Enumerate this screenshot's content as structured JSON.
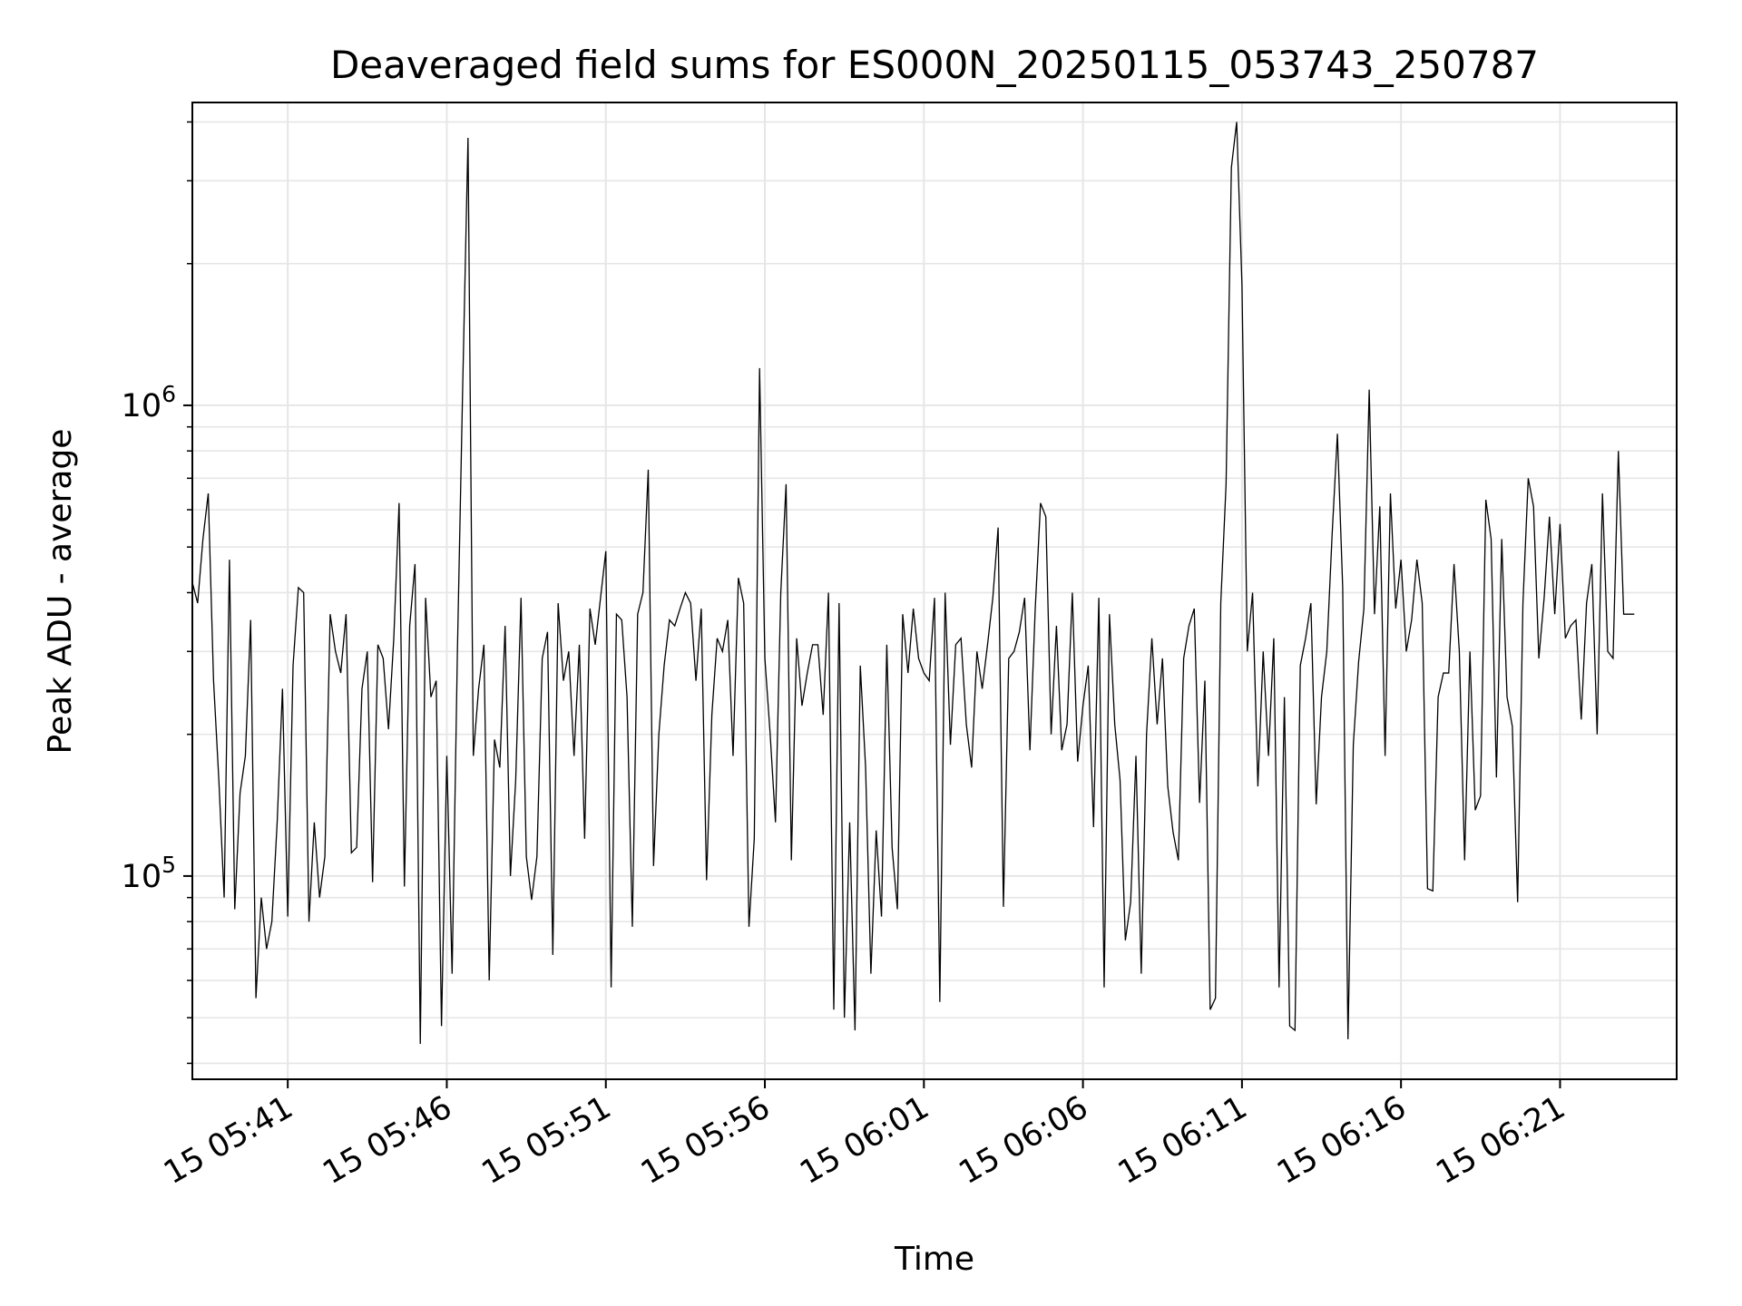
{
  "chart_data": {
    "type": "line",
    "title": "Deaveraged field sums for ES000N_20250115_053743_250787",
    "xlabel": "Time",
    "ylabel": "Peak ADU - average",
    "yscale": "log",
    "ylim": [
      37000,
      4400000
    ],
    "xlim": [
      "2025-01-15T05:38:00",
      "2025-01-15T06:24:40"
    ],
    "grid": true,
    "line_color": "#000000",
    "grid_color": "#e6e6e6",
    "x_ticks": [
      {
        "t": "2025-01-15T05:41:00",
        "label": "15 05:41"
      },
      {
        "t": "2025-01-15T05:46:00",
        "label": "15 05:46"
      },
      {
        "t": "2025-01-15T05:51:00",
        "label": "15 05:51"
      },
      {
        "t": "2025-01-15T05:56:00",
        "label": "15 05:56"
      },
      {
        "t": "2025-01-15T06:01:00",
        "label": "15 06:01"
      },
      {
        "t": "2025-01-15T06:06:00",
        "label": "15 06:06"
      },
      {
        "t": "2025-01-15T06:11:00",
        "label": "15 06:11"
      },
      {
        "t": "2025-01-15T06:16:00",
        "label": "15 06:16"
      },
      {
        "t": "2025-01-15T06:21:00",
        "label": "15 06:21"
      }
    ],
    "y_ticks": [
      {
        "value": 100000,
        "base": "10",
        "exp": "5"
      },
      {
        "value": 1000000,
        "base": "10",
        "exp": "6"
      }
    ],
    "series": [
      {
        "x_start": "2025-01-15T05:38:00",
        "x_step_seconds": 10,
        "values": [
          420000,
          380000,
          520000,
          650000,
          260000,
          160000,
          90000,
          470000,
          85000,
          150000,
          180000,
          350000,
          55000,
          90000,
          70000,
          80000,
          130000,
          250000,
          82000,
          280000,
          410000,
          400000,
          80000,
          130000,
          90000,
          110000,
          360000,
          300000,
          270000,
          360000,
          112000,
          115000,
          250000,
          300000,
          97000,
          310000,
          290000,
          205000,
          320000,
          620000,
          95000,
          340000,
          460000,
          44000,
          390000,
          240000,
          260000,
          48000,
          180000,
          62000,
          300000,
          1100000,
          3700000,
          180000,
          250000,
          310000,
          60000,
          195000,
          170000,
          340000,
          100000,
          160000,
          390000,
          110000,
          89000,
          110000,
          290000,
          330000,
          68000,
          380000,
          260000,
          300000,
          180000,
          310000,
          120000,
          370000,
          310000,
          390000,
          490000,
          58000,
          360000,
          350000,
          240000,
          78000,
          360000,
          400000,
          730000,
          105000,
          200000,
          280000,
          350000,
          340000,
          370000,
          400000,
          380000,
          260000,
          370000,
          98000,
          220000,
          320000,
          300000,
          350000,
          180000,
          430000,
          380000,
          78000,
          120000,
          1200000,
          290000,
          200000,
          130000,
          400000,
          680000,
          108000,
          320000,
          230000,
          270000,
          310000,
          310000,
          220000,
          400000,
          52000,
          380000,
          50000,
          130000,
          47000,
          280000,
          170000,
          62000,
          125000,
          82000,
          310000,
          115000,
          85000,
          360000,
          270000,
          370000,
          290000,
          270000,
          260000,
          390000,
          54000,
          400000,
          190000,
          310000,
          320000,
          210000,
          170000,
          300000,
          250000,
          310000,
          390000,
          550000,
          86000,
          290000,
          300000,
          330000,
          390000,
          185000,
          370000,
          620000,
          580000,
          200000,
          340000,
          185000,
          210000,
          400000,
          175000,
          230000,
          280000,
          127000,
          390000,
          58000,
          360000,
          210000,
          160000,
          73000,
          88000,
          180000,
          62000,
          200000,
          320000,
          210000,
          290000,
          155000,
          124000,
          108000,
          290000,
          340000,
          370000,
          143000,
          260000,
          52000,
          55000,
          380000,
          680000,
          3200000,
          4000000,
          1800000,
          300000,
          400000,
          155000,
          300000,
          180000,
          320000,
          58000,
          240000,
          48000,
          47000,
          280000,
          320000,
          380000,
          142000,
          240000,
          300000,
          530000,
          870000,
          410000,
          45000,
          190000,
          285000,
          370000,
          1080000,
          360000,
          610000,
          180000,
          650000,
          370000,
          470000,
          300000,
          350000,
          470000,
          380000,
          94000,
          93000,
          240000,
          270000,
          270000,
          460000,
          300000,
          108000,
          300000,
          138000,
          148000,
          630000,
          520000,
          162000,
          520000,
          240000,
          208000,
          88000,
          380000,
          700000,
          610000,
          290000,
          390000,
          580000,
          360000,
          560000,
          320000,
          340000,
          350000,
          215000,
          380000,
          460000,
          200000,
          650000,
          300000,
          290000,
          800000,
          360000,
          360000,
          360000
        ]
      }
    ]
  }
}
